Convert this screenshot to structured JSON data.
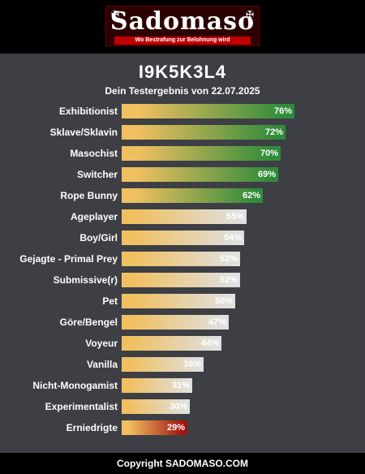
{
  "brand": {
    "logo_text": "Sadomaso",
    "tagline": "Wo Bestrafung zur Belohnung wird"
  },
  "result": {
    "code": "I9K5K3L4",
    "subtitle": "Dein Testergebnis von 22.07.2025"
  },
  "colors": {
    "bar_start": "#f0c060",
    "high": "#2e8b3a",
    "mid": "#e0e0e0",
    "low": "#a01010"
  },
  "chart_data": {
    "type": "bar",
    "categories": [
      "Exhibitionist",
      "Sklave/Sklavin",
      "Masochist",
      "Switcher",
      "Rope Bunny",
      "Ageplayer",
      "Boy/Girl",
      "Gejagte - Primal Prey",
      "Submissive(r)",
      "Pet",
      "Göre/Bengel",
      "Voyeur",
      "Vanilla",
      "Nicht-Monogamist",
      "Experimentalist",
      "Erniedrigte"
    ],
    "values": [
      76,
      72,
      70,
      69,
      62,
      55,
      54,
      52,
      52,
      50,
      47,
      44,
      36,
      31,
      30,
      29
    ],
    "labels": [
      "76%",
      "72%",
      "70%",
      "69%",
      "62%",
      "55%",
      "54%",
      "52%",
      "52%",
      "50%",
      "47%",
      "44%",
      "36%",
      "31%",
      "30%",
      "29%"
    ],
    "tones": [
      "high",
      "high",
      "high",
      "high",
      "high",
      "mid",
      "mid",
      "mid",
      "mid",
      "mid",
      "mid",
      "mid",
      "mid",
      "mid",
      "mid",
      "low"
    ],
    "xlim": [
      0,
      100
    ]
  },
  "footer": {
    "text": "Copyright SADOMASO.COM"
  }
}
